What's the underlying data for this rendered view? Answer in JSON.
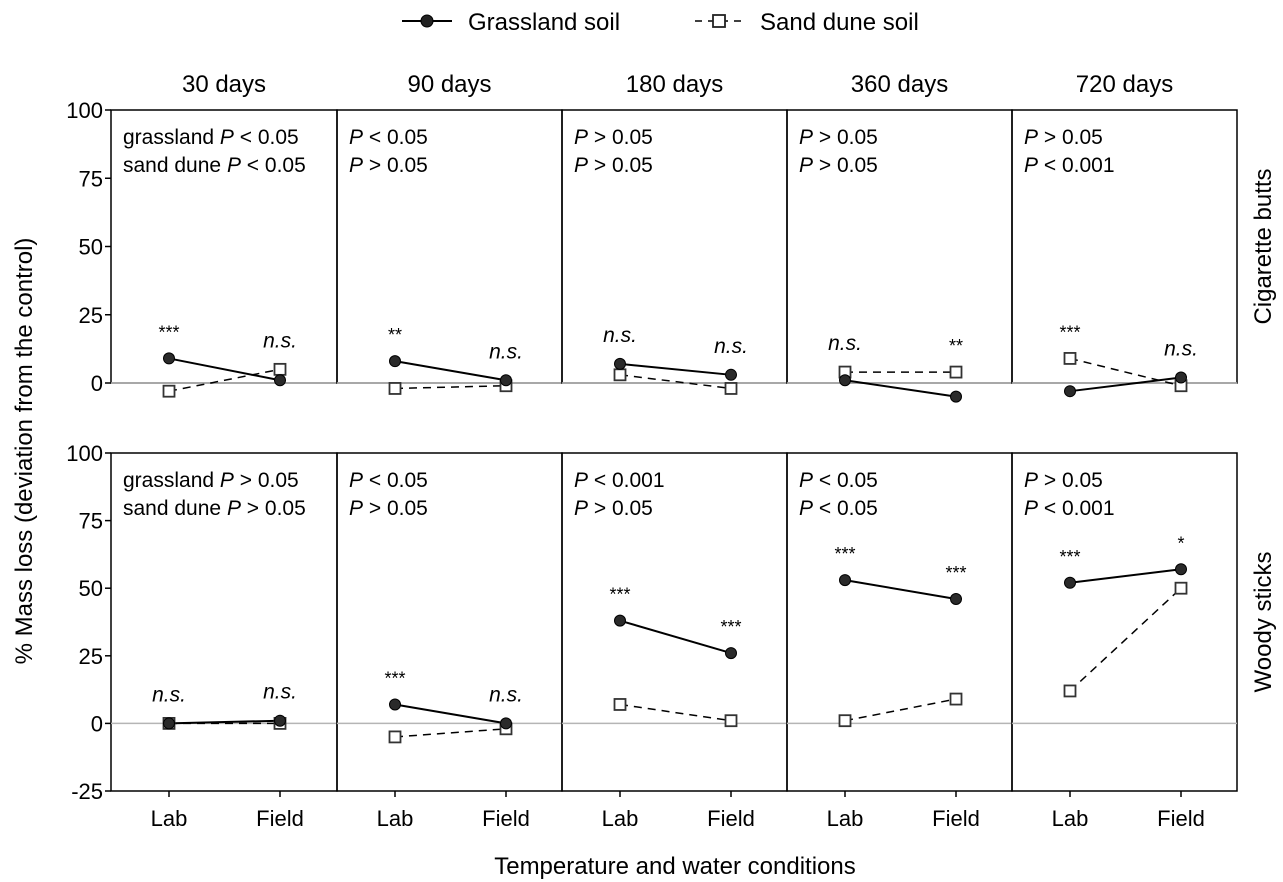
{
  "chart_data": {
    "type": "line",
    "xlabel": "Temperature and water conditions",
    "ylabel": "% Mass loss (deviation from the control)",
    "x_categories": [
      "Lab",
      "Field"
    ],
    "columns": [
      "30 days",
      "90 days",
      "180 days",
      "360 days",
      "720 days"
    ],
    "rows": [
      "Cigarette butts",
      "Woody sticks"
    ],
    "legend": [
      {
        "name": "Grassland soil",
        "marker": "filled-circle",
        "line": "solid"
      },
      {
        "name": "Sand dune soil",
        "marker": "open-square",
        "line": "dashed"
      }
    ],
    "legend_position": "top-center",
    "row_ylim": [
      [
        0,
        100
      ],
      [
        -25,
        100
      ]
    ],
    "row_yticks": [
      [
        "0",
        "25",
        "50",
        "75",
        "100"
      ],
      [
        "-25",
        "0",
        "25",
        "50",
        "75",
        "100"
      ]
    ],
    "reference_line_y": 0,
    "panels": [
      {
        "row": 0,
        "col": 0,
        "p_text": [
          {
            "prefix": "grassland ",
            "op": "< 0.05"
          },
          {
            "prefix": "sand dune ",
            "op": "< 0.05"
          }
        ],
        "grassland": [
          9,
          1
        ],
        "sand_dune": [
          -3,
          5
        ],
        "sig": [
          "***",
          "n.s."
        ]
      },
      {
        "row": 0,
        "col": 1,
        "p_text": [
          {
            "prefix": "",
            "op": "< 0.05"
          },
          {
            "prefix": "",
            "op": "> 0.05"
          }
        ],
        "grassland": [
          8,
          1
        ],
        "sand_dune": [
          -2,
          -1
        ],
        "sig": [
          "**",
          "n.s."
        ]
      },
      {
        "row": 0,
        "col": 2,
        "p_text": [
          {
            "prefix": "",
            "op": "> 0.05"
          },
          {
            "prefix": "",
            "op": "> 0.05"
          }
        ],
        "grassland": [
          7,
          3
        ],
        "sand_dune": [
          3,
          -2
        ],
        "sig": [
          "n.s.",
          "n.s."
        ]
      },
      {
        "row": 0,
        "col": 3,
        "p_text": [
          {
            "prefix": "",
            "op": "> 0.05"
          },
          {
            "prefix": "",
            "op": "> 0.05"
          }
        ],
        "grassland": [
          1,
          -5
        ],
        "sand_dune": [
          4,
          4
        ],
        "sig": [
          "n.s.",
          "**"
        ]
      },
      {
        "row": 0,
        "col": 4,
        "p_text": [
          {
            "prefix": "",
            "op": "> 0.05"
          },
          {
            "prefix": "",
            "op": "< 0.001"
          }
        ],
        "grassland": [
          -3,
          2
        ],
        "sand_dune": [
          9,
          -1
        ],
        "sig": [
          "***",
          "n.s."
        ]
      },
      {
        "row": 1,
        "col": 0,
        "p_text": [
          {
            "prefix": "grassland ",
            "op": "> 0.05"
          },
          {
            "prefix": "sand dune ",
            "op": "> 0.05"
          }
        ],
        "grassland": [
          0,
          1
        ],
        "sand_dune": [
          0,
          0
        ],
        "sig": [
          "n.s.",
          "n.s."
        ]
      },
      {
        "row": 1,
        "col": 1,
        "p_text": [
          {
            "prefix": "",
            "op": "< 0.05"
          },
          {
            "prefix": "",
            "op": "> 0.05"
          }
        ],
        "grassland": [
          7,
          0
        ],
        "sand_dune": [
          -5,
          -2
        ],
        "sig": [
          "***",
          "n.s."
        ]
      },
      {
        "row": 1,
        "col": 2,
        "p_text": [
          {
            "prefix": "",
            "op": "< 0.001"
          },
          {
            "prefix": "",
            "op": "> 0.05"
          }
        ],
        "grassland": [
          38,
          26
        ],
        "sand_dune": [
          7,
          1
        ],
        "sig": [
          "***",
          "***"
        ]
      },
      {
        "row": 1,
        "col": 3,
        "p_text": [
          {
            "prefix": "",
            "op": "< 0.05"
          },
          {
            "prefix": "",
            "op": "< 0.05"
          }
        ],
        "grassland": [
          53,
          46
        ],
        "sand_dune": [
          1,
          9
        ],
        "sig": [
          "***",
          "***"
        ]
      },
      {
        "row": 1,
        "col": 4,
        "p_text": [
          {
            "prefix": "",
            "op": "> 0.05"
          },
          {
            "prefix": "",
            "op": "< 0.001"
          }
        ],
        "grassland": [
          52,
          57
        ],
        "sand_dune": [
          12,
          50
        ],
        "sig": [
          "***",
          "*"
        ]
      }
    ]
  }
}
